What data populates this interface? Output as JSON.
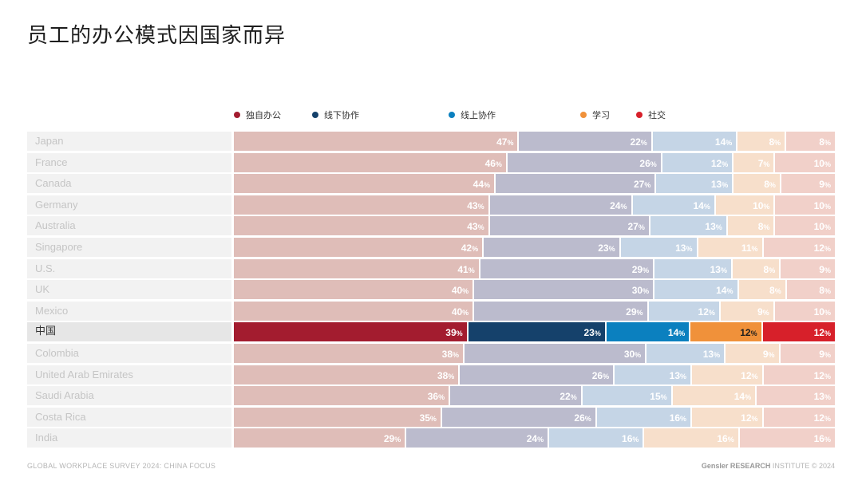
{
  "title": "员工的办公模式因国家而异",
  "chart_data": {
    "type": "bar",
    "orientation": "horizontal-stacked-100",
    "series": [
      {
        "name": "独自办公",
        "color": "#a31c2f",
        "muted": "#dfbdb8"
      },
      {
        "name": "线下协作",
        "color": "#15416b",
        "muted": "#bbbbcd"
      },
      {
        "name": "线上协作",
        "color": "#0b80bf",
        "muted": "#c5d5e6"
      },
      {
        "name": "学习",
        "color": "#f0913a",
        "muted": "#f7dfcb"
      },
      {
        "name": "社交",
        "color": "#d7202a",
        "muted": "#f1d0c9"
      }
    ],
    "rows": [
      {
        "label": "Japan",
        "values": [
          47,
          22,
          14,
          8,
          8
        ]
      },
      {
        "label": "France",
        "values": [
          46,
          26,
          12,
          7,
          10
        ]
      },
      {
        "label": "Canada",
        "values": [
          44,
          27,
          13,
          8,
          9
        ]
      },
      {
        "label": "Germany",
        "values": [
          43,
          24,
          14,
          10,
          10
        ]
      },
      {
        "label": "Australia",
        "values": [
          43,
          27,
          13,
          8,
          10
        ]
      },
      {
        "label": "Singapore",
        "values": [
          42,
          23,
          13,
          11,
          12
        ]
      },
      {
        "label": "U.S.",
        "values": [
          41,
          29,
          13,
          8,
          9
        ]
      },
      {
        "label": "UK",
        "values": [
          40,
          30,
          14,
          8,
          8
        ]
      },
      {
        "label": "Mexico",
        "values": [
          40,
          29,
          12,
          9,
          10
        ]
      },
      {
        "label": "中国",
        "values": [
          39,
          23,
          14,
          12,
          12
        ],
        "highlight": true
      },
      {
        "label": "Colombia",
        "values": [
          38,
          30,
          13,
          9,
          9
        ]
      },
      {
        "label": "United Arab Emirates",
        "values": [
          38,
          26,
          13,
          12,
          12
        ]
      },
      {
        "label": "Saudi Arabia",
        "values": [
          36,
          22,
          15,
          14,
          13
        ]
      },
      {
        "label": "Costa Rica",
        "values": [
          35,
          26,
          16,
          12,
          12
        ]
      },
      {
        "label": "India",
        "values": [
          29,
          24,
          16,
          16,
          16
        ]
      }
    ],
    "value_suffix": "%"
  },
  "footer": {
    "left": "GLOBAL WORKPLACE SURVEY 2024: CHINA FOCUS",
    "right_brand": "Gensler RESEARCH",
    "right_rest": " INSTITUTE © 2024"
  }
}
